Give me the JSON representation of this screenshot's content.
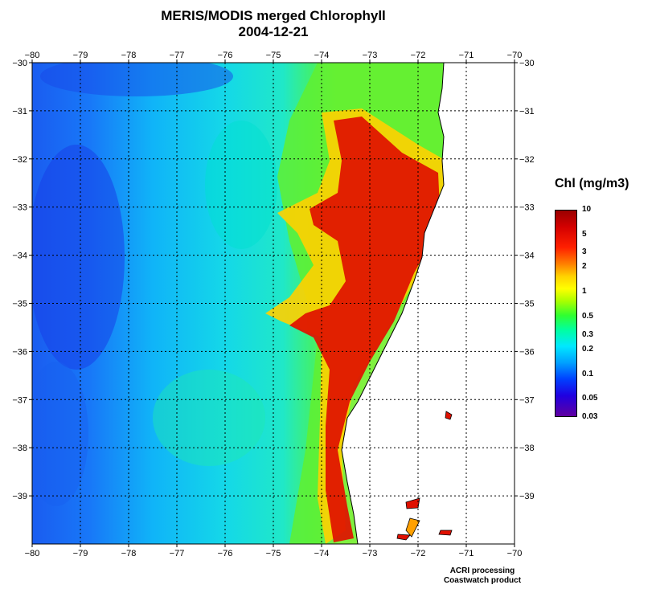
{
  "header": {
    "title": "MERIS/MODIS merged Chlorophyll",
    "date": "2004-12-21"
  },
  "map": {
    "lon_ticks": [
      "-80",
      "-79",
      "-78",
      "-77",
      "-76",
      "-75",
      "-74",
      "-73",
      "-72",
      "-71",
      "-70"
    ],
    "lat_ticks": [
      "-30",
      "-31",
      "-32",
      "-33",
      "-34",
      "-35",
      "-36",
      "-37",
      "-38",
      "-39"
    ],
    "lon_range": [
      -80,
      -70
    ],
    "lat_range": [
      -40,
      -30
    ],
    "grid": true,
    "land_color": "#ffffff"
  },
  "colorbar": {
    "title": "Chl (mg/m3)",
    "labels": [
      "10",
      "5",
      "3",
      "2",
      "1",
      "0.5",
      "0.3",
      "0.2",
      "0.1",
      "0.05",
      "0.03"
    ],
    "scale": "log",
    "colors": [
      "#9a0000",
      "#ff2000",
      "#ffd200",
      "#30ff30",
      "#00e8ff",
      "#0040ff",
      "#6000a0"
    ]
  },
  "credits": {
    "line1": "ACRI processing",
    "line2": "Coastwatch product"
  }
}
